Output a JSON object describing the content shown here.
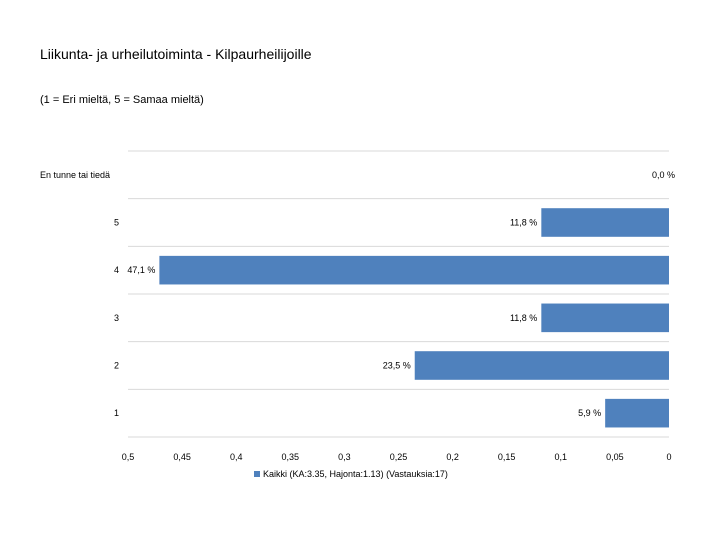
{
  "title": "Liikunta- ja urheilutoiminta - Kilpaurheilijoille",
  "subtitle": "(1 = Eri mieltä, 5 = Samaa mieltä)",
  "chart_data": {
    "type": "bar",
    "orientation": "horizontal",
    "x_reversed": true,
    "categories": [
      "En tunne tai tiedä",
      "5",
      "4",
      "3",
      "2",
      "1"
    ],
    "series": [
      {
        "name": "Kaikki (KA:3.35, Hajonta:1.13) (Vastauksia:17)",
        "values": [
          0.0,
          0.118,
          0.471,
          0.118,
          0.235,
          0.059
        ],
        "labels": [
          "0,0 %",
          "11,8 %",
          "47,1 %",
          "11,8 %",
          "23,5 %",
          "5,9 %"
        ]
      }
    ],
    "xlim": [
      0,
      0.5
    ],
    "x_ticks": [
      "0,5",
      "0,45",
      "0,4",
      "0,35",
      "0,3",
      "0,25",
      "0,2",
      "0,15",
      "0,1",
      "0,05",
      "0"
    ],
    "grid": true,
    "legend_position": "bottom",
    "colors": {
      "bar": "#4f81bd",
      "grid": "#d9d9d9"
    }
  }
}
